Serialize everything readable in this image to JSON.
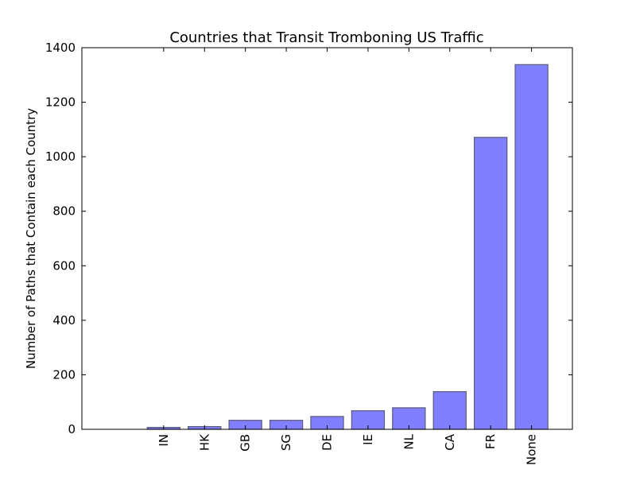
{
  "chart_data": {
    "type": "bar",
    "title": "Countries that Transit Tromboning US  Traffic",
    "xlabel": "",
    "ylabel": "Number of Paths that Contain each Country",
    "categories": [
      "IN",
      "HK",
      "GB",
      "SG",
      "DE",
      "IE",
      "NL",
      "CA",
      "FR",
      "None"
    ],
    "values": [
      7,
      10,
      33,
      33,
      47,
      68,
      79,
      138,
      1071,
      1338
    ],
    "ylim": [
      0,
      1400
    ],
    "yticks": [
      0,
      200,
      400,
      600,
      800,
      1000,
      1200,
      1400
    ],
    "grid": false,
    "legend": "none",
    "bar_color": "#8080ff"
  }
}
